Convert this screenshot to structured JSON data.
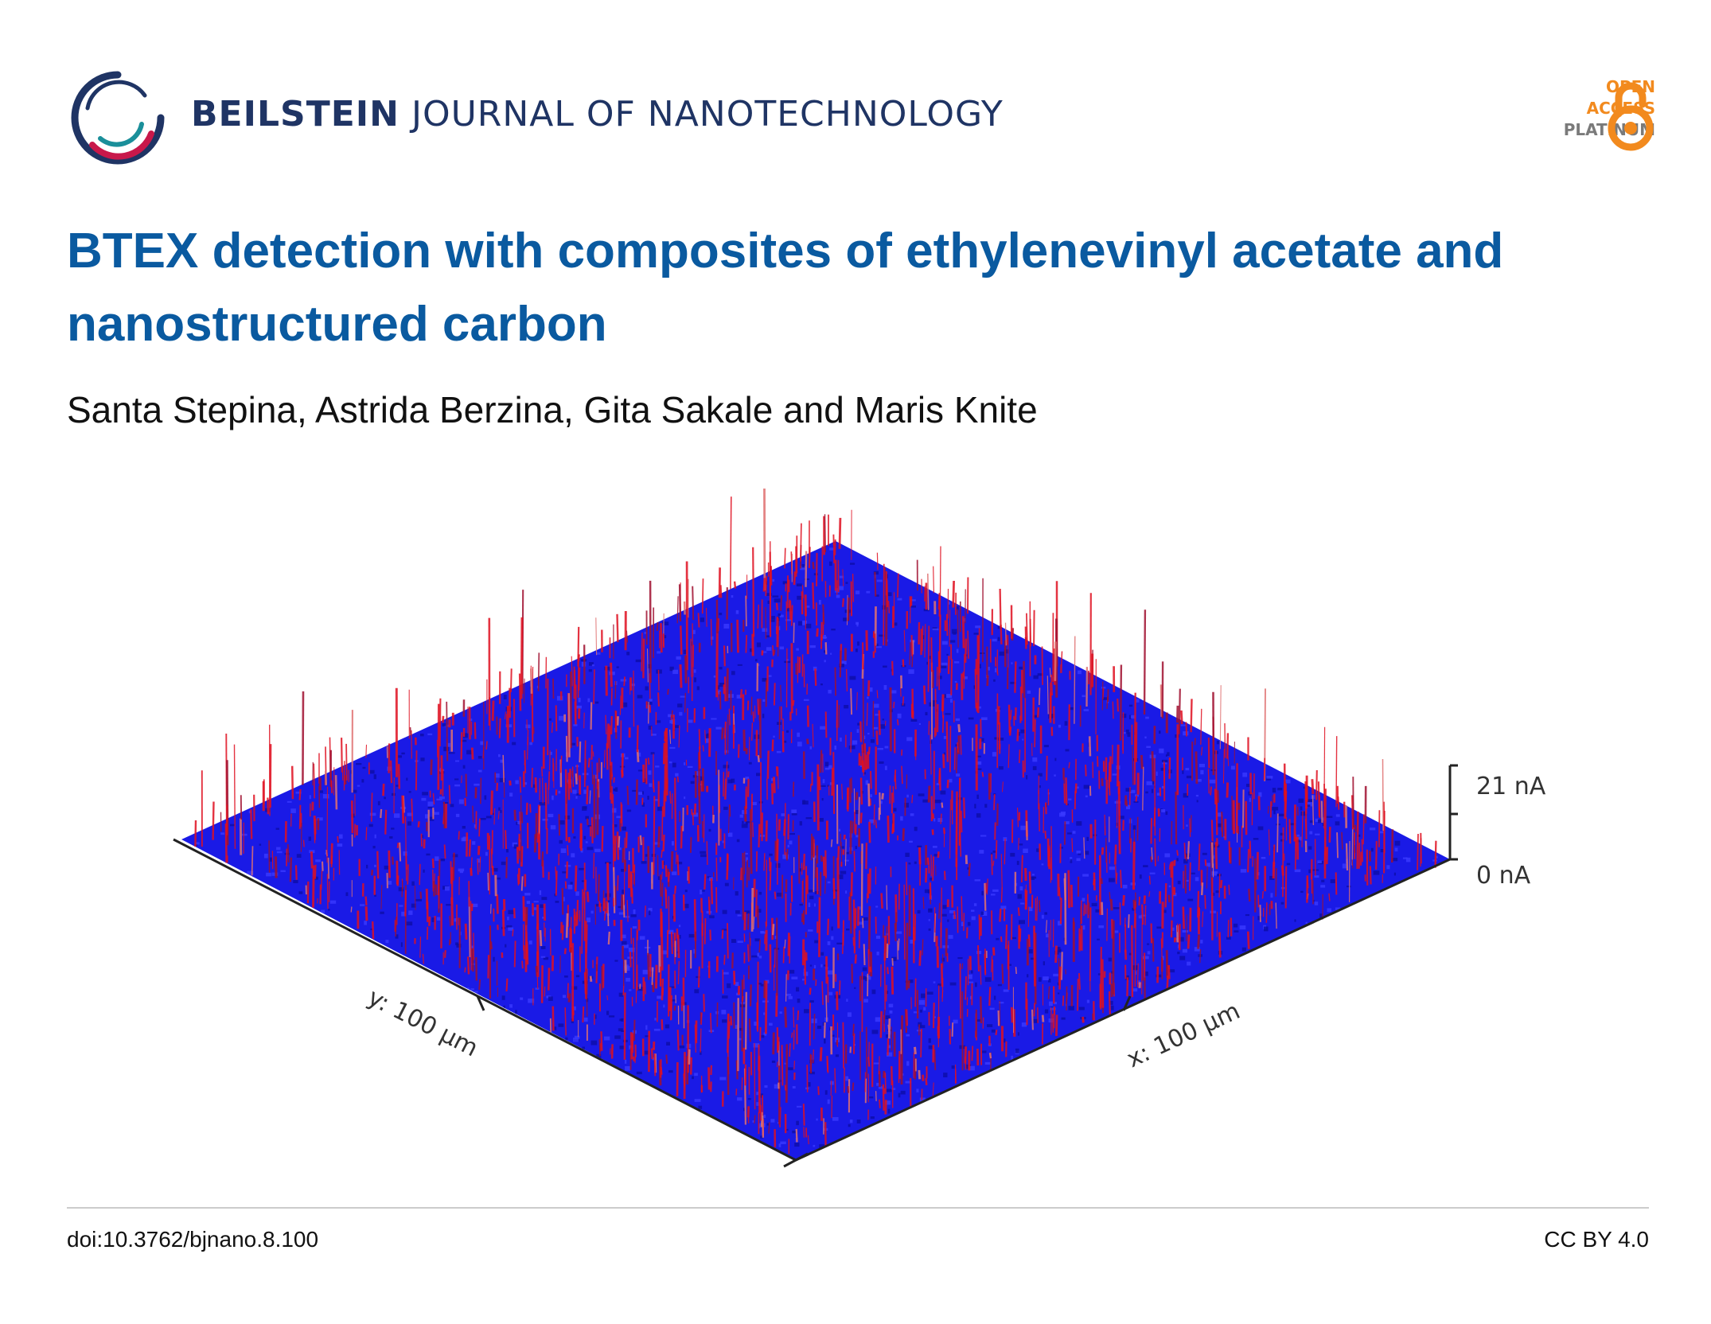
{
  "header": {
    "journal_bold": "BEILSTEIN",
    "journal_rest": "JOURNAL OF NANOTECHNOLOGY",
    "open_access": [
      "OPEN",
      "ACCESS",
      "PLATINUM"
    ]
  },
  "article": {
    "title": "BTEX detection with composites of ethylenevinyl acetate and nanostructured carbon",
    "authors": "Santa Stepina, Astrida Berzina, Gita Sakale and Maris Knite"
  },
  "figure": {
    "description": "3D current map of composite surface",
    "scale_max_label": "21 nA",
    "scale_min_label": "0 nA",
    "x_axis_label": "x: 100 µm",
    "y_axis_label": "y: 100 µm",
    "surface_color": "#1a1ae6",
    "peak_color": "#e01020"
  },
  "footer": {
    "doi": "doi:10.3762/bjnano.8.100",
    "license": "CC BY 4.0"
  },
  "colors": {
    "title": "#0a5aa0",
    "journal": "#1f3464",
    "oa_orange": "#f28a1e",
    "oa_gray": "#7a7a7a"
  }
}
